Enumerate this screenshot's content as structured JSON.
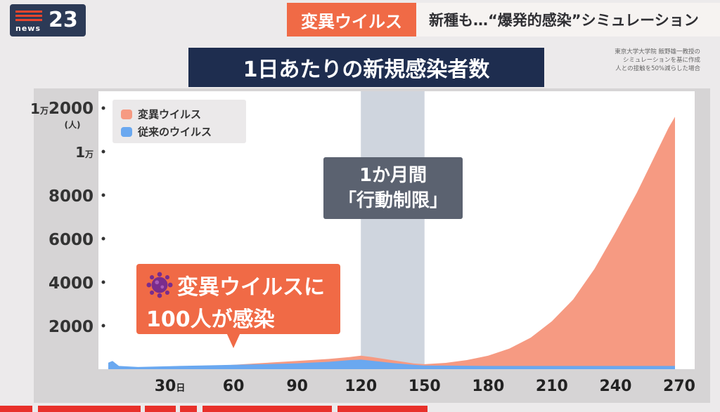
{
  "header": {
    "logo_word": "news",
    "logo_num": "23",
    "topic_tag": "変異ウイルス",
    "topic_title": "新種も…“爆発的感染”シミュレーション"
  },
  "colors": {
    "variant": "#f69a82",
    "conventional": "#6aa8f0",
    "restriction_band": "#cfd5de",
    "title_bg": "#1e2d4f",
    "accent": "#f06a46"
  },
  "source_note": [
    "東京大学大学院 飯野雄一教授の",
    "シミュレーションを基に作成",
    "人との接触を50%減らした場合"
  ],
  "chart_data": {
    "type": "area",
    "title": "1日あたりの新規感染者数",
    "ylabel_unit": "(人)",
    "ylim": [
      0,
      12000
    ],
    "xlim": [
      1,
      270
    ],
    "y_ticks": [
      {
        "value": 2000,
        "label": "2000"
      },
      {
        "value": 4000,
        "label": "4000"
      },
      {
        "value": 6000,
        "label": "6000"
      },
      {
        "value": 8000,
        "label": "8000"
      },
      {
        "value": 10000,
        "label_num": "1",
        "label_unit": "万"
      },
      {
        "value": 12000,
        "label_num": "1",
        "label_unit": "万",
        "label_tail": "2000"
      }
    ],
    "x_ticks": [
      {
        "value": 30,
        "label": "30",
        "unit": "日"
      },
      {
        "value": 60,
        "label": "60"
      },
      {
        "value": 90,
        "label": "90"
      },
      {
        "value": 120,
        "label": "120"
      },
      {
        "value": 150,
        "label": "150"
      },
      {
        "value": 180,
        "label": "180"
      },
      {
        "value": 210,
        "label": "210"
      },
      {
        "value": 240,
        "label": "240"
      },
      {
        "value": 270,
        "label": "270"
      }
    ],
    "legend": [
      "変異ウイルス",
      "従来のウイルス"
    ],
    "restriction_period": {
      "start": 120,
      "end": 150,
      "label_line1": "1か月間",
      "label_line2": "「行動制限」"
    },
    "annotation": {
      "line1": "変異ウイルスに",
      "line2": "100人が感染",
      "at_day": 60
    },
    "series": [
      {
        "name": "変異ウイルス",
        "x": [
          1,
          15,
          30,
          45,
          60,
          75,
          90,
          105,
          115,
          120,
          125,
          135,
          145,
          150,
          160,
          170,
          180,
          190,
          200,
          210,
          220,
          230,
          240,
          250,
          260,
          265,
          268
        ],
        "values": [
          0,
          20,
          60,
          120,
          200,
          290,
          380,
          470,
          560,
          620,
          560,
          410,
          260,
          230,
          290,
          420,
          620,
          950,
          1450,
          2200,
          3200,
          4600,
          6300,
          8100,
          10100,
          11100,
          11600
        ]
      },
      {
        "name": "従来のウイルス",
        "x": [
          1,
          3,
          6,
          15,
          30,
          45,
          60,
          75,
          90,
          105,
          115,
          120,
          125,
          135,
          145,
          150,
          165,
          180,
          200,
          220,
          240,
          260,
          268
        ],
        "values": [
          300,
          380,
          150,
          100,
          140,
          170,
          200,
          230,
          270,
          340,
          420,
          440,
          390,
          280,
          200,
          170,
          160,
          150,
          150,
          150,
          150,
          150,
          150
        ]
      }
    ]
  }
}
